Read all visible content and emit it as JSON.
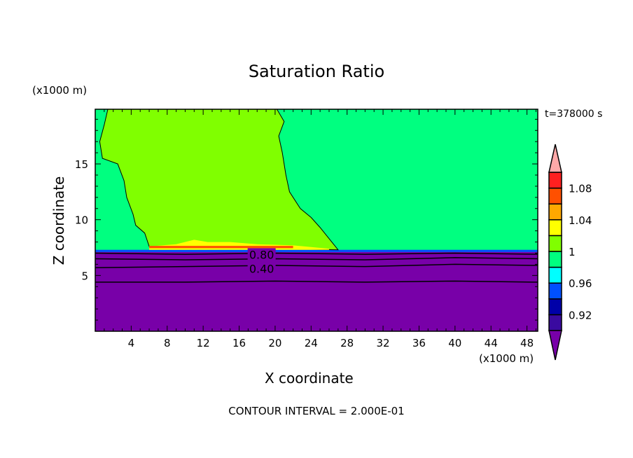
{
  "chart_data": {
    "type": "heatmap",
    "title": "Saturation Ratio",
    "xlabel": "X coordinate",
    "ylabel": "Z coordinate",
    "x_unit": "(x1000 m)",
    "z_unit": "(x1000 m)",
    "time_label": "t=378000 s",
    "footer": "CONTOUR INTERVAL = 2.000E-01",
    "xlim": [
      0,
      49.2
    ],
    "ylim": [
      0,
      19.9
    ],
    "xticks": [
      4,
      8,
      12,
      16,
      20,
      24,
      28,
      32,
      36,
      40,
      44,
      48
    ],
    "yticks": [
      5,
      10,
      15
    ],
    "colorbar": {
      "levels": [
        0.9,
        0.92,
        0.94,
        0.96,
        0.98,
        1.0,
        1.02,
        1.04,
        1.06,
        1.08,
        1.1
      ],
      "colors": [
        "#3a0aa0",
        "#0000a8",
        "#0050ff",
        "#00ffff",
        "#00ff80",
        "#80ff00",
        "#ffff00",
        "#ffa800",
        "#ff5000",
        "#ff2020"
      ],
      "under_color": "#7800a8",
      "over_color": "#ffa8a8",
      "tick_labels": [
        "1.08",
        "1.04",
        "1",
        "0.96",
        "0.92"
      ],
      "tick_values": [
        1.08,
        1.04,
        1.0,
        0.96,
        0.92
      ]
    },
    "regions": [
      {
        "value": ">1.00 (1-1.02)",
        "color": "#80ff00",
        "polygon": [
          [
            1.4,
            19.9
          ],
          [
            1.0,
            18.5
          ],
          [
            0.5,
            17.0
          ],
          [
            0.8,
            15.5
          ],
          [
            2.5,
            15.0
          ],
          [
            3.2,
            13.5
          ],
          [
            3.5,
            12.0
          ],
          [
            4.2,
            10.5
          ],
          [
            4.5,
            9.5
          ],
          [
            5.5,
            8.8
          ],
          [
            6,
            7.6
          ],
          [
            27,
            7.3
          ],
          [
            26.3,
            8.0
          ],
          [
            25,
            9.3
          ],
          [
            24,
            10.2
          ],
          [
            22.8,
            11.0
          ],
          [
            21.6,
            12.5
          ],
          [
            21.2,
            14
          ],
          [
            20.8,
            16
          ],
          [
            20.4,
            17.5
          ],
          [
            21.0,
            18.8
          ],
          [
            20.2,
            19.9
          ]
        ]
      },
      {
        "value": "1.02-1.06",
        "color": "#ffff00",
        "polygon": [
          [
            6,
            7.6
          ],
          [
            9,
            7.8
          ],
          [
            11,
            8.2
          ],
          [
            12.5,
            8.0
          ],
          [
            15,
            8.0
          ],
          [
            18,
            7.8
          ],
          [
            22,
            7.7
          ],
          [
            26,
            7.4
          ],
          [
            26,
            7.3
          ],
          [
            6,
            7.3
          ]
        ]
      },
      {
        "value": "1.06-1.10",
        "color": "#ff5000",
        "polygon": [
          [
            6,
            7.45
          ],
          [
            22,
            7.45
          ],
          [
            22,
            7.65
          ],
          [
            6,
            7.65
          ]
        ]
      },
      {
        "value": "<0.90",
        "color": "#7800a8",
        "polygon": [
          [
            0,
            0
          ],
          [
            49.2,
            0
          ],
          [
            49.2,
            7.1
          ],
          [
            0,
            7.1
          ]
        ]
      }
    ],
    "contour_lines": [
      {
        "label": "",
        "z": [
          [
            0,
            7.0
          ],
          [
            10,
            6.9
          ],
          [
            20,
            7.0
          ],
          [
            30,
            6.9
          ],
          [
            40,
            7.0
          ],
          [
            49.2,
            6.9
          ]
        ]
      },
      {
        "label": "0.80",
        "z": [
          [
            0,
            6.5
          ],
          [
            10,
            6.4
          ],
          [
            20,
            6.5
          ],
          [
            30,
            6.4
          ],
          [
            40,
            6.6
          ],
          [
            49.2,
            6.5
          ]
        ]
      },
      {
        "label": "0.40",
        "z": [
          [
            0,
            5.7
          ],
          [
            10,
            5.8
          ],
          [
            20,
            5.9
          ],
          [
            30,
            5.8
          ],
          [
            40,
            6.0
          ],
          [
            49.2,
            5.9
          ]
        ]
      },
      {
        "label": "",
        "z": [
          [
            0,
            4.4
          ],
          [
            10,
            4.4
          ],
          [
            20,
            4.5
          ],
          [
            30,
            4.4
          ],
          [
            40,
            4.5
          ],
          [
            49.2,
            4.4
          ]
        ]
      }
    ]
  }
}
